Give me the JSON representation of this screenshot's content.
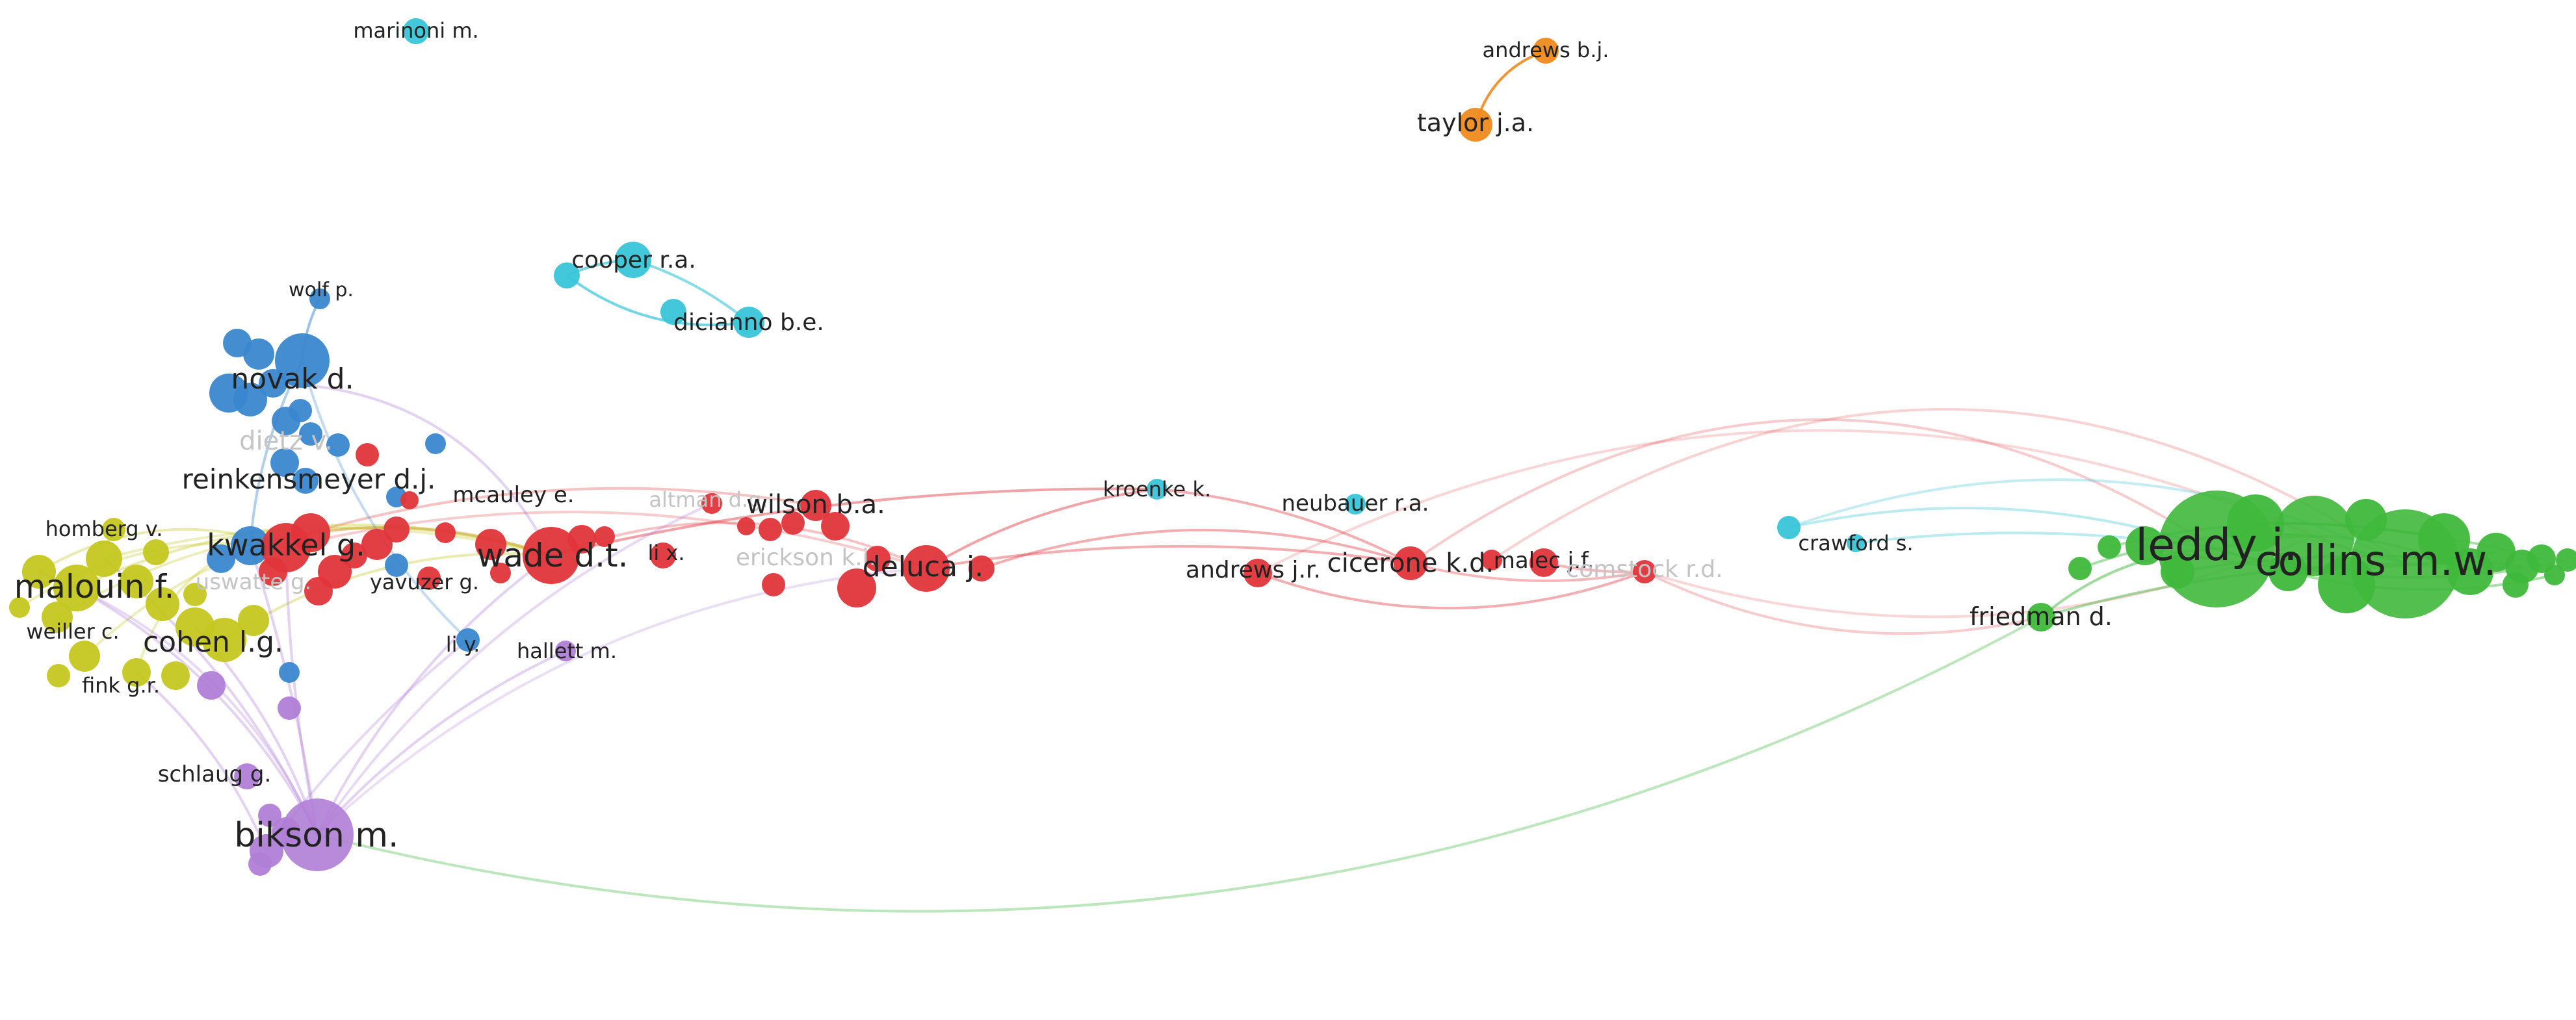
{
  "colors": {
    "red": "#e0353b",
    "blue": "#3a87cf",
    "yellow": "#c4c71f",
    "purple": "#b07ed6",
    "cyan": "#38c5d8",
    "green": "#3fb83c",
    "orange": "#ef8a1e",
    "label": "#222222",
    "faint_label": "#c4c4c4"
  },
  "labels": [
    {
      "text": "marinoni m.",
      "cluster": "cyan"
    },
    {
      "text": "andrews b.j.",
      "cluster": "orange"
    },
    {
      "text": "taylor j.a.",
      "cluster": "orange"
    },
    {
      "text": "cooper r.a.",
      "cluster": "cyan"
    },
    {
      "text": "dicianno b.e.",
      "cluster": "cyan"
    },
    {
      "text": "wolf p.",
      "cluster": "blue"
    },
    {
      "text": "novak d.",
      "cluster": "blue"
    },
    {
      "text": "dietz v.",
      "cluster": "blue"
    },
    {
      "text": "reinkensmeyer d.j.",
      "cluster": "blue"
    },
    {
      "text": "mcauley e.",
      "cluster": "red"
    },
    {
      "text": "homberg v.",
      "cluster": "yellow"
    },
    {
      "text": "kwakkel g.",
      "cluster": "blue"
    },
    {
      "text": "malouin f.",
      "cluster": "yellow"
    },
    {
      "text": "uswatte g.",
      "cluster": "yellow"
    },
    {
      "text": "yavuzer g.",
      "cluster": "red"
    },
    {
      "text": "weiller c.",
      "cluster": "yellow"
    },
    {
      "text": "cohen l.g.",
      "cluster": "yellow"
    },
    {
      "text": "fink g.r.",
      "cluster": "yellow"
    },
    {
      "text": "wade d.t.",
      "cluster": "red"
    },
    {
      "text": "altman d.g.",
      "cluster": "red"
    },
    {
      "text": "li x.",
      "cluster": "red"
    },
    {
      "text": "wilson b.a.",
      "cluster": "red"
    },
    {
      "text": "erickson k.i.",
      "cluster": "red"
    },
    {
      "text": "deluca j.",
      "cluster": "red"
    },
    {
      "text": "li y.",
      "cluster": "blue"
    },
    {
      "text": "hallett m.",
      "cluster": "purple"
    },
    {
      "text": "schlaug g.",
      "cluster": "purple"
    },
    {
      "text": "bikson m.",
      "cluster": "purple"
    },
    {
      "text": "kroenke k.",
      "cluster": "cyan"
    },
    {
      "text": "neubauer r.a.",
      "cluster": "cyan"
    },
    {
      "text": "andrews j.r.",
      "cluster": "red"
    },
    {
      "text": "cicerone k.d.",
      "cluster": "red"
    },
    {
      "text": "malec j.f.",
      "cluster": "red"
    },
    {
      "text": "comstock r.d.",
      "cluster": "red"
    },
    {
      "text": "crawford s.",
      "cluster": "cyan"
    },
    {
      "text": "leddy j.",
      "cluster": "green"
    },
    {
      "text": "collins m.w.",
      "cluster": "green"
    },
    {
      "text": "friedman d.",
      "cluster": "green"
    }
  ]
}
